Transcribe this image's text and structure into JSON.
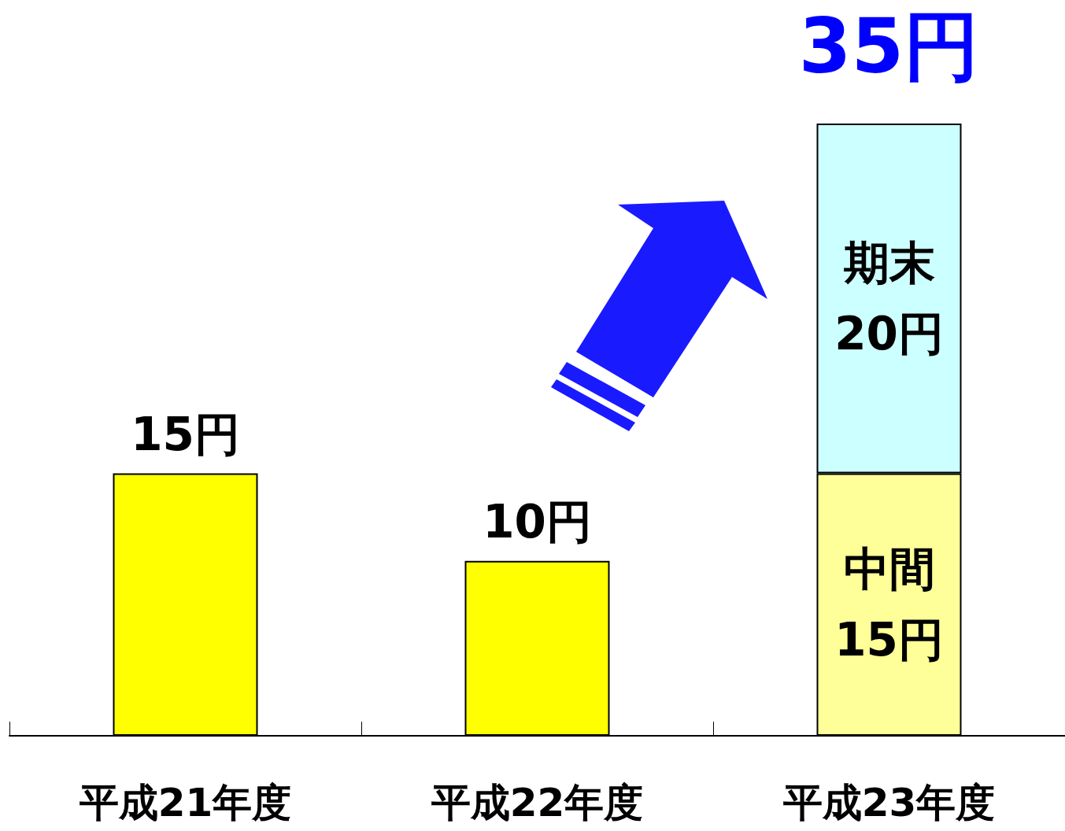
{
  "chart_data": {
    "type": "bar",
    "stacked": true,
    "categories": [
      "平成21年度",
      "平成22年度",
      "平成23年度"
    ],
    "series": [
      {
        "colors": [
          "#ffff00",
          "#ffff00",
          "#ffff99"
        ],
        "values": [
          15,
          10,
          15
        ],
        "value_labels": [
          "15円",
          "10円",
          "中間\n15円"
        ]
      },
      {
        "color": "#ccffff",
        "values": [
          null,
          null,
          20
        ],
        "value_labels": [
          null,
          null,
          "期末\n20円"
        ]
      }
    ],
    "totals": [
      null,
      null,
      "35円"
    ]
  }
}
